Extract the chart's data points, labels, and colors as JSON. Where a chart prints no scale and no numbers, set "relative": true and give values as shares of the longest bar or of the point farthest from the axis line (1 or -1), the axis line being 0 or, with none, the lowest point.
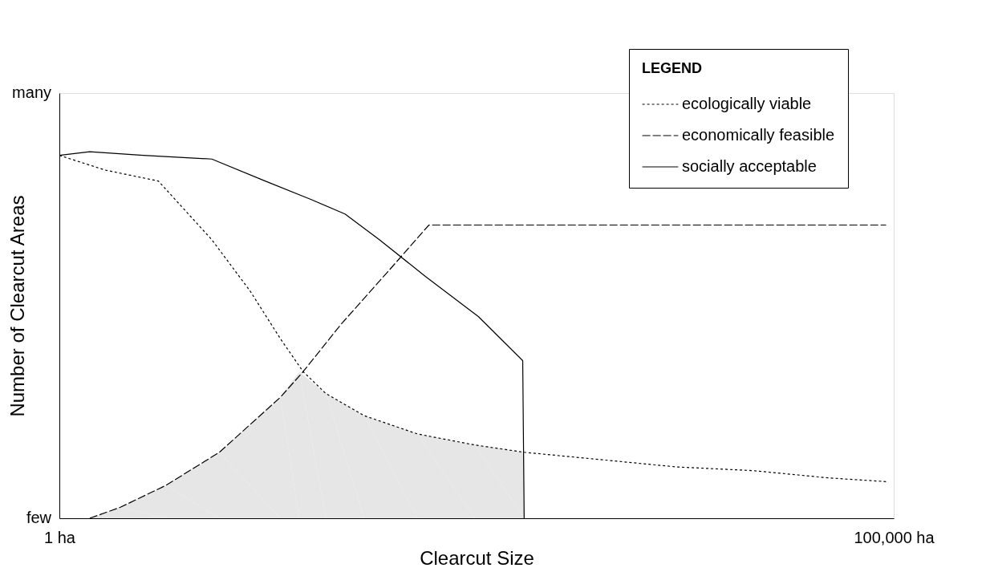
{
  "chart_data": {
    "type": "line",
    "relative": true,
    "xlabel": "Clearcut Size",
    "ylabel": "Number of Clearcut Areas",
    "log": "x",
    "xlim": [
      1,
      100000
    ],
    "xticks": [
      {
        "value": 1,
        "label": "1 ha"
      },
      {
        "value": 100000,
        "label": "100,000 ha"
      }
    ],
    "annotations": [
      "few",
      "many"
    ],
    "legend": "top right",
    "legend_title": "LEGEND",
    "series": [
      {
        "type": "area",
        "color": "#e6e6e6",
        "x": [
          1.52,
          2.32,
          4.36,
          9.1,
          21.1,
          27.4,
          39.6,
          67.0,
          140,
          308,
          610
        ],
        "values": [
          0.0,
          0.03,
          0.09,
          0.18,
          0.33,
          0.4,
          0.34,
          0.28,
          0.23,
          0.2,
          0.18
        ]
      },
      {
        "name": "ecologically viable",
        "color": "#000000",
        "line_style": "dotted",
        "x": [
          1,
          1.88,
          3.92,
          8.19,
          13.9,
          21.1,
          28.9,
          39.6,
          67.0,
          140,
          308,
          610,
          1746,
          5000,
          14290,
          40900,
          90000
        ],
        "values": [
          0.99,
          0.95,
          0.92,
          0.76,
          0.62,
          0.49,
          0.4,
          0.34,
          0.28,
          0.23,
          0.2,
          0.18,
          0.16,
          0.14,
          0.13,
          0.11,
          0.1
        ]
      },
      {
        "name": "economically feasible",
        "color": "#000000",
        "line_style": "dashed",
        "x": [
          1.52,
          2.32,
          4.36,
          9.1,
          21.1,
          28.9,
          48.9,
          91.9,
          164,
          610,
          5000,
          90000
        ],
        "values": [
          0.0,
          0.03,
          0.09,
          0.18,
          0.33,
          0.4,
          0.53,
          0.67,
          0.8,
          0.8,
          0.8,
          0.8
        ]
      },
      {
        "name": "socially acceptable",
        "color": "#000000",
        "line_style": "solid",
        "x": [
          1,
          1.52,
          3.18,
          8.19,
          17.1,
          32.1,
          51.5,
          82.7,
          156,
          325,
          598,
          610
        ],
        "values": [
          0.99,
          1.0,
          0.99,
          0.98,
          0.92,
          0.87,
          0.83,
          0.76,
          0.66,
          0.55,
          0.43,
          0.0
        ]
      }
    ]
  }
}
